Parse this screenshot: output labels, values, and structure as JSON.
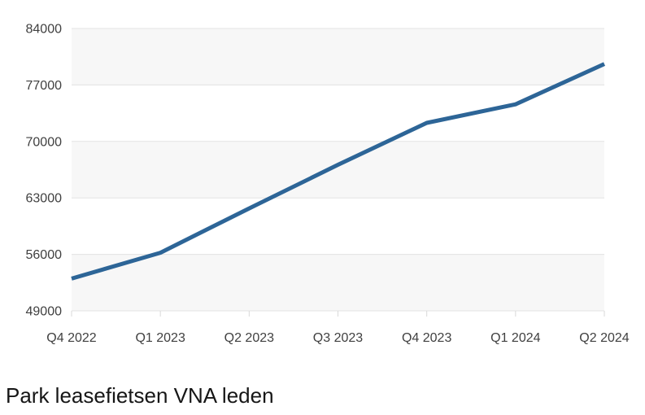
{
  "title": {
    "text": "Park leasefietsen VNA leden",
    "color": "#161616"
  },
  "chart_data": {
    "type": "line",
    "categories": [
      "Q4 2022",
      "Q1 2023",
      "Q2 2023",
      "Q3 2023",
      "Q4 2023",
      "Q1 2024",
      "Q2 2024"
    ],
    "series": [
      {
        "name": "Park leasefietsen VNA leden",
        "values": [
          53000,
          56200,
          61700,
          67100,
          72300,
          74600,
          79600
        ]
      }
    ],
    "title": "Park leasefietsen VNA leden",
    "xlabel": "",
    "ylabel": "",
    "ylim": [
      49000,
      84000
    ],
    "yticks": [
      49000,
      56000,
      63000,
      70000,
      77000,
      84000
    ],
    "ytick_labels": [
      "49000",
      "56000",
      "63000",
      "70000",
      "77000",
      "84000"
    ],
    "grid": true,
    "legend": false,
    "colors": {
      "line": "#2d6597",
      "band_gray": "#f7f7f7",
      "band_white": "#ffffff",
      "gridline": "#e3e3e3",
      "tick": "#d9d9d9",
      "axis_text": "#404040"
    }
  }
}
